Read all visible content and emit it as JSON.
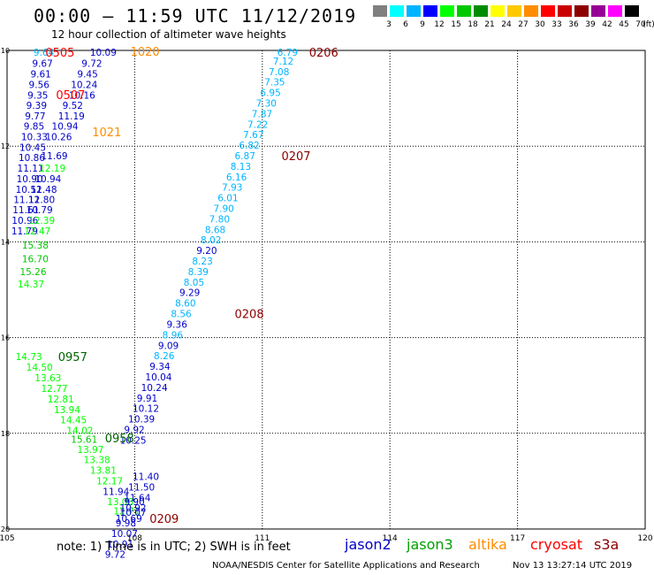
{
  "title": "00:00 – 11:59 UTC 11/12/2019",
  "subtitle": "12 hour collection of altimeter wave heights",
  "legend": {
    "unit": "(ft)",
    "bins": [
      {
        "label": "3",
        "color": "#808080"
      },
      {
        "label": "6",
        "color": "#00ffff"
      },
      {
        "label": "9",
        "color": "#00b4ff"
      },
      {
        "label": "12",
        "color": "#0000ff"
      },
      {
        "label": "15",
        "color": "#00ff00"
      },
      {
        "label": "18",
        "color": "#00c800"
      },
      {
        "label": "21",
        "color": "#008c00"
      },
      {
        "label": "24",
        "color": "#ffff00"
      },
      {
        "label": "27",
        "color": "#ffc800"
      },
      {
        "label": "30",
        "color": "#ff8c00"
      },
      {
        "label": "33",
        "color": "#ff0000"
      },
      {
        "label": "36",
        "color": "#c80000"
      },
      {
        "label": "39",
        "color": "#8c0000"
      },
      {
        "label": "42",
        "color": "#960096"
      },
      {
        "label": "45",
        "color": "#ff00ff"
      },
      {
        "label": "70",
        "color": "#000000"
      }
    ]
  },
  "map": {
    "lon_ticks": [
      "105",
      "108",
      "111",
      "114",
      "117",
      "120"
    ],
    "lat_ticks": [
      "10",
      "12",
      "14",
      "16",
      "18",
      "20"
    ],
    "extent": {
      "lon": [
        105,
        120
      ],
      "lat": [
        10,
        20
      ],
      "lat_direction": "down"
    }
  },
  "tracks": [
    {
      "name": "s3a-0505",
      "color": "#006400",
      "labels": [
        {
          "t": "9.64",
          "lon": 105.62,
          "lat": 10.04,
          "c": "#00b4ff"
        },
        {
          "t": "9.67",
          "lon": 105.59,
          "lat": 10.27,
          "c": "#0000c8"
        },
        {
          "t": "9.61",
          "lon": 105.55,
          "lat": 10.49,
          "c": "#0000c8"
        },
        {
          "t": "9.56",
          "lon": 105.51,
          "lat": 10.71,
          "c": "#0000c8"
        },
        {
          "t": "9.35",
          "lon": 105.48,
          "lat": 10.93,
          "c": "#0000c8"
        },
        {
          "t": "9.39",
          "lon": 105.45,
          "lat": 11.15,
          "c": "#0000c8"
        },
        {
          "t": "9.77",
          "lon": 105.42,
          "lat": 11.37,
          "c": "#0000c8"
        },
        {
          "t": "9.85",
          "lon": 105.39,
          "lat": 11.58,
          "c": "#0000c8"
        },
        {
          "t": "10.33",
          "lon": 105.33,
          "lat": 11.8,
          "c": "#0000c8"
        },
        {
          "t": "10.45",
          "lon": 105.29,
          "lat": 12.02,
          "c": "#0000c8"
        },
        {
          "t": "10.86",
          "lon": 105.27,
          "lat": 12.24,
          "c": "#0000c8"
        },
        {
          "t": "11.11",
          "lon": 105.24,
          "lat": 12.46,
          "c": "#0000c8"
        },
        {
          "t": "10.90",
          "lon": 105.22,
          "lat": 12.68,
          "c": "#0000c8"
        },
        {
          "t": "10.52",
          "lon": 105.2,
          "lat": 12.9,
          "c": "#0000c8"
        },
        {
          "t": "11.12",
          "lon": 105.15,
          "lat": 13.11,
          "c": "#0000c8"
        },
        {
          "t": "11.61",
          "lon": 105.13,
          "lat": 13.33,
          "c": "#0000c8"
        },
        {
          "t": "10.96",
          "lon": 105.11,
          "lat": 13.55,
          "c": "#0000c8"
        },
        {
          "t": "11.79",
          "lon": 105.1,
          "lat": 13.77,
          "c": "#0000c8"
        }
      ]
    },
    {
      "name": "jason2-a",
      "color": "#0000c8",
      "labels": [
        {
          "t": "9.72",
          "lon": 106.75,
          "lat": 10.27,
          "c": "#0000c8"
        },
        {
          "t": "9.45",
          "lon": 106.65,
          "lat": 10.49,
          "c": "#0000c8"
        },
        {
          "t": "10.24",
          "lon": 106.5,
          "lat": 10.71,
          "c": "#0000c8"
        },
        {
          "t": "9.52",
          "lon": 106.3,
          "lat": 11.15,
          "c": "#0000c8"
        },
        {
          "t": "11.19",
          "lon": 106.2,
          "lat": 11.37,
          "c": "#0000c8"
        },
        {
          "t": "10.94",
          "lon": 106.05,
          "lat": 11.58,
          "c": "#0000c8"
        },
        {
          "t": "10.26",
          "lon": 105.9,
          "lat": 11.8,
          "c": "#0000c8"
        },
        {
          "t": "11.69",
          "lon": 105.8,
          "lat": 12.2,
          "c": "#0000c8"
        },
        {
          "t": "10.94",
          "lon": 105.65,
          "lat": 12.68,
          "c": "#0000c8"
        },
        {
          "t": "11.48",
          "lon": 105.55,
          "lat": 12.9,
          "c": "#0000c8"
        },
        {
          "t": "11.80",
          "lon": 105.5,
          "lat": 13.11,
          "c": "#0000c8"
        },
        {
          "t": "10.79",
          "lon": 105.45,
          "lat": 13.33,
          "c": "#0000c8"
        },
        {
          "t": "10.09",
          "lon": 106.95,
          "lat": 10.04,
          "c": "#0000c8"
        },
        {
          "t": "10.16",
          "lon": 106.45,
          "lat": 10.93,
          "c": "#0000c8"
        }
      ]
    },
    {
      "name": "jason3-0957",
      "color": "#00c800",
      "labels": [
        {
          "t": "12.19",
          "lon": 105.75,
          "lat": 12.46,
          "c": "#00ff00"
        },
        {
          "t": "12.39",
          "lon": 105.5,
          "lat": 13.55,
          "c": "#00ff00"
        },
        {
          "t": "12.47",
          "lon": 105.4,
          "lat": 13.77,
          "c": "#00ff00"
        },
        {
          "t": "15.38",
          "lon": 105.35,
          "lat": 14.07,
          "c": "#00c800"
        },
        {
          "t": "16.70",
          "lon": 105.35,
          "lat": 14.35,
          "c": "#00c800"
        },
        {
          "t": "15.26",
          "lon": 105.3,
          "lat": 14.62,
          "c": "#00c800"
        },
        {
          "t": "14.37",
          "lon": 105.25,
          "lat": 14.88,
          "c": "#00ff00"
        },
        {
          "t": "14.73",
          "lon": 105.2,
          "lat": 16.4,
          "c": "#00ff00"
        },
        {
          "t": "14.50",
          "lon": 105.45,
          "lat": 16.62,
          "c": "#00ff00"
        },
        {
          "t": "13.63",
          "lon": 105.65,
          "lat": 16.84,
          "c": "#00ff00"
        },
        {
          "t": "12.77",
          "lon": 105.8,
          "lat": 17.06,
          "c": "#00ff00"
        },
        {
          "t": "12.81",
          "lon": 105.95,
          "lat": 17.28,
          "c": "#00ff00"
        },
        {
          "t": "13.94",
          "lon": 106.1,
          "lat": 17.5,
          "c": "#00ff00"
        },
        {
          "t": "14.45",
          "lon": 106.25,
          "lat": 17.72,
          "c": "#00ff00"
        },
        {
          "t": "14.02",
          "lon": 106.4,
          "lat": 17.94,
          "c": "#00ff00"
        },
        {
          "t": "15.61",
          "lon": 106.5,
          "lat": 18.12,
          "c": "#00c800"
        },
        {
          "t": "13.97",
          "lon": 106.65,
          "lat": 18.34,
          "c": "#00ff00"
        },
        {
          "t": "13.38",
          "lon": 106.8,
          "lat": 18.55,
          "c": "#00ff00"
        },
        {
          "t": "13.81",
          "lon": 106.95,
          "lat": 18.77,
          "c": "#00ff00"
        },
        {
          "t": "12.17",
          "lon": 107.1,
          "lat": 18.99,
          "c": "#00ff00"
        },
        {
          "t": "13.08",
          "lon": 107.35,
          "lat": 19.43,
          "c": "#00ff00"
        },
        {
          "t": "12.71",
          "lon": 107.5,
          "lat": 19.62,
          "c": "#00ff00"
        }
      ]
    },
    {
      "name": "jason2-b",
      "color": "#0000c8",
      "labels": [
        {
          "t": "11.94",
          "lon": 107.25,
          "lat": 19.21,
          "c": "#0000c8"
        },
        {
          "t": "9.90",
          "lon": 107.75,
          "lat": 19.43,
          "c": "#0000c8"
        },
        {
          "t": "10.07",
          "lon": 107.65,
          "lat": 19.65,
          "c": "#0000c8"
        },
        {
          "t": "9.98",
          "lon": 107.55,
          "lat": 19.87,
          "c": "#0000c8"
        },
        {
          "t": "10.07",
          "lon": 107.45,
          "lat": 20.09,
          "c": "#0000c8"
        },
        {
          "t": "10.91",
          "lon": 107.35,
          "lat": 20.31,
          "c": "#0000c8"
        },
        {
          "t": "9.72",
          "lon": 107.3,
          "lat": 20.53,
          "c": "#0000c8"
        }
      ]
    },
    {
      "name": "cryosat-0206",
      "color": "#8c0000",
      "labels": [
        {
          "t": "6.79",
          "lon": 111.35,
          "lat": 10.04,
          "c": "#00b4ff"
        },
        {
          "t": "7.12",
          "lon": 111.25,
          "lat": 10.22,
          "c": "#00b4ff"
        },
        {
          "t": "7.08",
          "lon": 111.15,
          "lat": 10.44,
          "c": "#00b4ff"
        },
        {
          "t": "7.35",
          "lon": 111.05,
          "lat": 10.66,
          "c": "#00b4ff"
        },
        {
          "t": "6.95",
          "lon": 110.95,
          "lat": 10.88,
          "c": "#00b4ff"
        },
        {
          "t": "7.30",
          "lon": 110.85,
          "lat": 11.1,
          "c": "#00b4ff"
        },
        {
          "t": "7.87",
          "lon": 110.75,
          "lat": 11.32,
          "c": "#00b4ff"
        },
        {
          "t": "7.22",
          "lon": 110.65,
          "lat": 11.54,
          "c": "#00b4ff"
        },
        {
          "t": "7.67",
          "lon": 110.55,
          "lat": 11.76,
          "c": "#00b4ff"
        },
        {
          "t": "6.82",
          "lon": 110.45,
          "lat": 11.98,
          "c": "#00b4ff"
        },
        {
          "t": "6.87",
          "lon": 110.35,
          "lat": 12.2,
          "c": "#00b4ff"
        },
        {
          "t": "8.13",
          "lon": 110.25,
          "lat": 12.42,
          "c": "#00b4ff"
        },
        {
          "t": "6.16",
          "lon": 110.15,
          "lat": 12.64,
          "c": "#00b4ff"
        },
        {
          "t": "7.93",
          "lon": 110.05,
          "lat": 12.86,
          "c": "#00b4ff"
        },
        {
          "t": "6.01",
          "lon": 109.95,
          "lat": 13.08,
          "c": "#00b4ff"
        },
        {
          "t": "7.90",
          "lon": 109.85,
          "lat": 13.3,
          "c": "#00b4ff"
        },
        {
          "t": "7.80",
          "lon": 109.75,
          "lat": 13.52,
          "c": "#00b4ff"
        },
        {
          "t": "8.68",
          "lon": 109.65,
          "lat": 13.74,
          "c": "#00b4ff"
        },
        {
          "t": "8.02",
          "lon": 109.55,
          "lat": 13.96,
          "c": "#00b4ff"
        },
        {
          "t": "9.20",
          "lon": 109.45,
          "lat": 14.18,
          "c": "#0000c8"
        },
        {
          "t": "8.23",
          "lon": 109.35,
          "lat": 14.4,
          "c": "#00b4ff"
        },
        {
          "t": "8.39",
          "lon": 109.25,
          "lat": 14.62,
          "c": "#00b4ff"
        },
        {
          "t": "8.05",
          "lon": 109.15,
          "lat": 14.84,
          "c": "#00b4ff"
        },
        {
          "t": "9.29",
          "lon": 109.05,
          "lat": 15.06,
          "c": "#0000c8"
        },
        {
          "t": "8.60",
          "lon": 108.95,
          "lat": 15.28,
          "c": "#00b4ff"
        },
        {
          "t": "8.56",
          "lon": 108.85,
          "lat": 15.5,
          "c": "#00b4ff"
        },
        {
          "t": "9.36",
          "lon": 108.75,
          "lat": 15.72,
          "c": "#0000c8"
        },
        {
          "t": "8.96",
          "lon": 108.65,
          "lat": 15.94,
          "c": "#00b4ff"
        },
        {
          "t": "9.09",
          "lon": 108.55,
          "lat": 16.16,
          "c": "#0000c8"
        },
        {
          "t": "8.26",
          "lon": 108.45,
          "lat": 16.38,
          "c": "#00b4ff"
        },
        {
          "t": "9.34",
          "lon": 108.35,
          "lat": 16.6,
          "c": "#0000c8"
        },
        {
          "t": "10.04",
          "lon": 108.25,
          "lat": 16.82,
          "c": "#0000c8"
        },
        {
          "t": "10.24",
          "lon": 108.15,
          "lat": 17.04,
          "c": "#0000c8"
        },
        {
          "t": "9.91",
          "lon": 108.05,
          "lat": 17.26,
          "c": "#0000c8"
        },
        {
          "t": "10.12",
          "lon": 107.95,
          "lat": 17.48,
          "c": "#0000c8"
        },
        {
          "t": "10.39",
          "lon": 107.85,
          "lat": 17.7,
          "c": "#0000c8"
        },
        {
          "t": "9.92",
          "lon": 107.75,
          "lat": 17.92,
          "c": "#0000c8"
        },
        {
          "t": "10.25",
          "lon": 107.65,
          "lat": 18.14,
          "c": "#0000c8"
        },
        {
          "t": "11.40",
          "lon": 107.95,
          "lat": 18.9,
          "c": "#0000c8"
        },
        {
          "t": "11.50",
          "lon": 107.85,
          "lat": 19.12,
          "c": "#0000c8"
        },
        {
          "t": "11.64",
          "lon": 107.75,
          "lat": 19.34,
          "c": "#0000c8"
        },
        {
          "t": "10.92",
          "lon": 107.65,
          "lat": 19.56,
          "c": "#0000c8"
        },
        {
          "t": "10.69",
          "lon": 107.55,
          "lat": 19.78,
          "c": "#0000c8"
        }
      ]
    }
  ],
  "pass_labels": [
    {
      "t": "0505",
      "lon": 105.9,
      "lat": 10.04,
      "c": "#ff0000"
    },
    {
      "t": "0507",
      "lon": 106.15,
      "lat": 10.92,
      "c": "#ff0000"
    },
    {
      "t": "1020",
      "lon": 107.9,
      "lat": 10.02,
      "c": "#ff8c00"
    },
    {
      "t": "1021",
      "lon": 107.0,
      "lat": 11.7,
      "c": "#ff8c00"
    },
    {
      "t": "0206",
      "lon": 112.1,
      "lat": 10.04,
      "c": "#8c0000"
    },
    {
      "t": "0207",
      "lon": 111.45,
      "lat": 12.2,
      "c": "#8c0000"
    },
    {
      "t": "0208",
      "lon": 110.35,
      "lat": 15.5,
      "c": "#8c0000"
    },
    {
      "t": "0209",
      "lon": 108.35,
      "lat": 19.78,
      "c": "#8c0000"
    },
    {
      "t": "0957",
      "lon": 106.2,
      "lat": 16.4,
      "c": "#006400"
    },
    {
      "t": "0958",
      "lon": 107.3,
      "lat": 18.1,
      "c": "#006400"
    }
  ],
  "note": "note:  1) Time is in UTC;  2) SWH is in feet",
  "satellites": [
    {
      "name": "jason2",
      "color": "#0000c8"
    },
    {
      "name": "jason3",
      "color": "#00a000"
    },
    {
      "name": "altika",
      "color": "#ff8c00"
    },
    {
      "name": "cryosat",
      "color": "#ff0000"
    },
    {
      "name": "s3a",
      "color": "#8c0000"
    }
  ],
  "credit": "NOAA/NESDIS Center for Satellite Applications and Research",
  "stamp": "Nov 13 13:27:14 UTC 2019"
}
